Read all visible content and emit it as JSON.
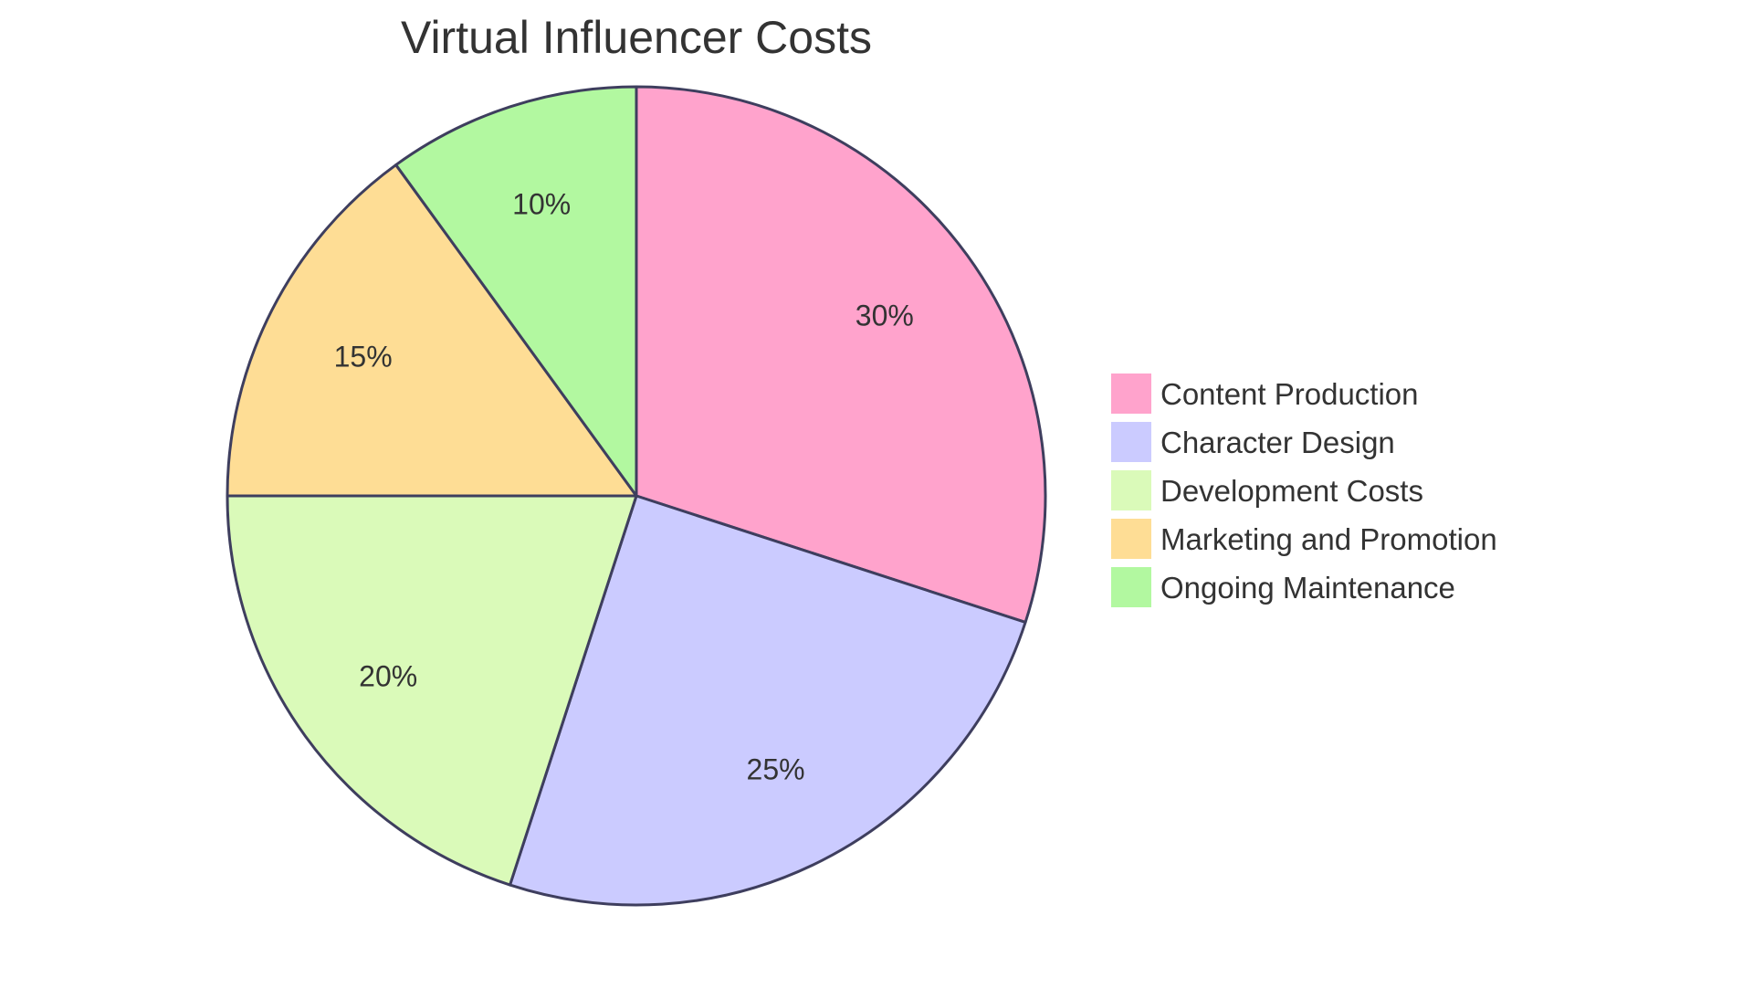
{
  "chart_data": {
    "type": "pie",
    "title": "Virtual Influencer Costs",
    "slices": [
      {
        "label": "Content Production",
        "value": 30,
        "display": "30%",
        "color": "#ffa3cc"
      },
      {
        "label": "Character Design",
        "value": 25,
        "display": "25%",
        "color": "#cbcbff"
      },
      {
        "label": "Development Costs",
        "value": 20,
        "display": "20%",
        "color": "#dafab9"
      },
      {
        "label": "Marketing and Promotion",
        "value": 15,
        "display": "15%",
        "color": "#fedd95"
      },
      {
        "label": "Ongoing Maintenance",
        "value": 10,
        "display": "10%",
        "color": "#b2f8a0"
      }
    ],
    "legend_position": "right",
    "stroke_color": "#3e3e5e"
  }
}
